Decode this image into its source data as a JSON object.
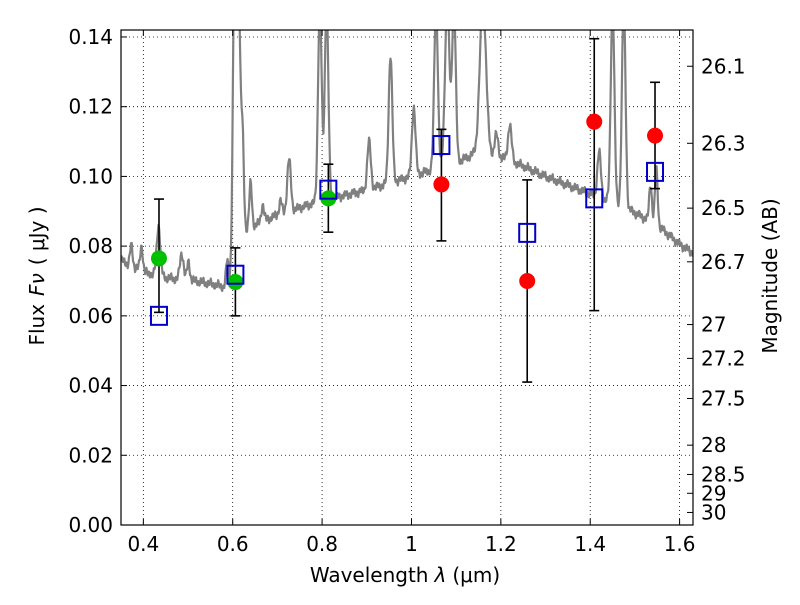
{
  "chart_data": {
    "type": "scatter",
    "xlabel": "Wavelength",
    "xlabel_symbol": "λ",
    "xlabel_unit": "(μm)",
    "ylabel": "Flux",
    "ylabel_symbol": "Fν",
    "ylabel_unit": "( μJy )",
    "ylabel_right": "Magnitude (AB)",
    "xlim": [
      0.35,
      1.63
    ],
    "ylim": [
      0.0,
      0.142
    ],
    "grid": true,
    "x_ticks": [
      0.4,
      0.6,
      0.8,
      1.0,
      1.2,
      1.4,
      1.6
    ],
    "x_tick_labels": [
      "0.4",
      "0.6",
      "0.8",
      "1",
      "1.2",
      "1.4",
      "1.6"
    ],
    "y_ticks": [
      0.0,
      0.02,
      0.04,
      0.06,
      0.08,
      0.1,
      0.12,
      0.14
    ],
    "y_tick_labels": [
      "0.00",
      "0.02",
      "0.04",
      "0.06",
      "0.08",
      "0.10",
      "0.12",
      "0.14"
    ],
    "right_ticks": [
      {
        "flux": 0.1316,
        "label": "26.1"
      },
      {
        "flux": 0.1095,
        "label": "26.3"
      },
      {
        "flux": 0.0909,
        "label": "26.5"
      },
      {
        "flux": 0.0755,
        "label": "26.7"
      },
      {
        "flux": 0.0575,
        "label": "27"
      },
      {
        "flux": 0.0478,
        "label": "27.2"
      },
      {
        "flux": 0.0363,
        "label": "27.5"
      },
      {
        "flux": 0.0229,
        "label": "28"
      },
      {
        "flux": 0.0145,
        "label": "28.5"
      },
      {
        "flux": 0.0091,
        "label": "29"
      },
      {
        "flux": 0.0036,
        "label": "30"
      }
    ],
    "series": [
      {
        "marker": "circle",
        "color": "#00c000",
        "x": [
          0.435,
          0.606,
          0.814
        ],
        "y": [
          0.0765,
          0.0697,
          0.0937
        ]
      },
      {
        "marker": "circle",
        "color": "#ff0000",
        "x": [
          1.067,
          1.259,
          1.409,
          1.545
        ],
        "y": [
          0.0977,
          0.07,
          0.1157,
          0.1117
        ]
      },
      {
        "marker": "square-open",
        "color": "#0000cc",
        "x": [
          0.435,
          0.606,
          0.814,
          1.067,
          1.259,
          1.409,
          1.545
        ],
        "y": [
          0.06,
          0.0718,
          0.0962,
          0.109,
          0.0838,
          0.0937,
          0.1013
        ]
      }
    ],
    "error_bars": [
      {
        "x": 0.435,
        "lo": 0.061,
        "hi": 0.0935
      },
      {
        "x": 0.606,
        "lo": 0.06,
        "hi": 0.0795
      },
      {
        "x": 0.814,
        "lo": 0.084,
        "hi": 0.1035
      },
      {
        "x": 1.067,
        "lo": 0.0815,
        "hi": 0.1135
      },
      {
        "x": 1.259,
        "lo": 0.041,
        "hi": 0.099
      },
      {
        "x": 1.409,
        "lo": 0.0615,
        "hi": 0.1395
      },
      {
        "x": 1.545,
        "lo": 0.0965,
        "hi": 0.127
      }
    ],
    "spectrum": {
      "color": "#808080",
      "continuum": [
        [
          0.35,
          0.076
        ],
        [
          0.37,
          0.0745
        ],
        [
          0.39,
          0.073
        ],
        [
          0.42,
          0.072
        ],
        [
          0.45,
          0.071
        ],
        [
          0.48,
          0.0705
        ],
        [
          0.52,
          0.07
        ],
        [
          0.56,
          0.069
        ],
        [
          0.59,
          0.068
        ],
        [
          0.6,
          0.072
        ],
        [
          0.62,
          0.084
        ],
        [
          0.65,
          0.086
        ],
        [
          0.7,
          0.089
        ],
        [
          0.75,
          0.091
        ],
        [
          0.8,
          0.093
        ],
        [
          0.85,
          0.0945
        ],
        [
          0.9,
          0.096
        ],
        [
          0.95,
          0.098
        ],
        [
          1.0,
          0.1
        ],
        [
          1.05,
          0.102
        ],
        [
          1.1,
          0.104
        ],
        [
          1.15,
          0.107
        ],
        [
          1.2,
          0.1055
        ],
        [
          1.25,
          0.103
        ],
        [
          1.3,
          0.1
        ],
        [
          1.35,
          0.0975
        ],
        [
          1.4,
          0.095
        ],
        [
          1.45,
          0.0925
        ],
        [
          1.5,
          0.0895
        ],
        [
          1.55,
          0.086
        ],
        [
          1.6,
          0.0805
        ],
        [
          1.63,
          0.078
        ]
      ],
      "lines": [
        {
          "x": 0.373,
          "peak": 0.08,
          "width": 0.003
        },
        {
          "x": 0.386,
          "peak": 0.074,
          "width": 0.003
        },
        {
          "x": 0.396,
          "peak": 0.08,
          "width": 0.003
        },
        {
          "x": 0.41,
          "peak": 0.072,
          "width": 0.002
        },
        {
          "x": 0.434,
          "peak": 0.086,
          "width": 0.004
        },
        {
          "x": 0.486,
          "peak": 0.078,
          "width": 0.004
        },
        {
          "x": 0.501,
          "peak": 0.0755,
          "width": 0.003
        },
        {
          "x": 0.588,
          "peak": 0.076,
          "width": 0.003
        },
        {
          "x": 0.602,
          "peak": 0.09,
          "width": 0.003
        },
        {
          "x": 0.605,
          "peak": 0.15,
          "width": 0.004
        },
        {
          "x": 0.613,
          "peak": 0.15,
          "width": 0.004
        },
        {
          "x": 0.622,
          "peak": 0.11,
          "width": 0.003
        },
        {
          "x": 0.64,
          "peak": 0.098,
          "width": 0.003
        },
        {
          "x": 0.667,
          "peak": 0.092,
          "width": 0.003
        },
        {
          "x": 0.707,
          "peak": 0.093,
          "width": 0.003
        },
        {
          "x": 0.726,
          "peak": 0.105,
          "width": 0.004
        },
        {
          "x": 0.795,
          "peak": 0.15,
          "width": 0.004
        },
        {
          "x": 0.81,
          "peak": 0.15,
          "width": 0.004
        },
        {
          "x": 0.905,
          "peak": 0.11,
          "width": 0.004
        },
        {
          "x": 0.953,
          "peak": 0.135,
          "width": 0.004
        },
        {
          "x": 1.005,
          "peak": 0.12,
          "width": 0.004
        },
        {
          "x": 1.055,
          "peak": 0.15,
          "width": 0.004
        },
        {
          "x": 1.08,
          "peak": 0.15,
          "width": 0.005
        },
        {
          "x": 1.095,
          "peak": 0.15,
          "width": 0.004
        },
        {
          "x": 1.16,
          "peak": 0.15,
          "width": 0.007
        },
        {
          "x": 1.19,
          "peak": 0.112,
          "width": 0.004
        },
        {
          "x": 1.22,
          "peak": 0.115,
          "width": 0.004
        },
        {
          "x": 1.42,
          "peak": 0.107,
          "width": 0.004
        },
        {
          "x": 1.45,
          "peak": 0.15,
          "width": 0.004
        },
        {
          "x": 1.475,
          "peak": 0.15,
          "width": 0.004
        },
        {
          "x": 1.535,
          "peak": 0.098,
          "width": 0.003
        },
        {
          "x": 1.548,
          "peak": 0.102,
          "width": 0.003
        }
      ]
    }
  }
}
